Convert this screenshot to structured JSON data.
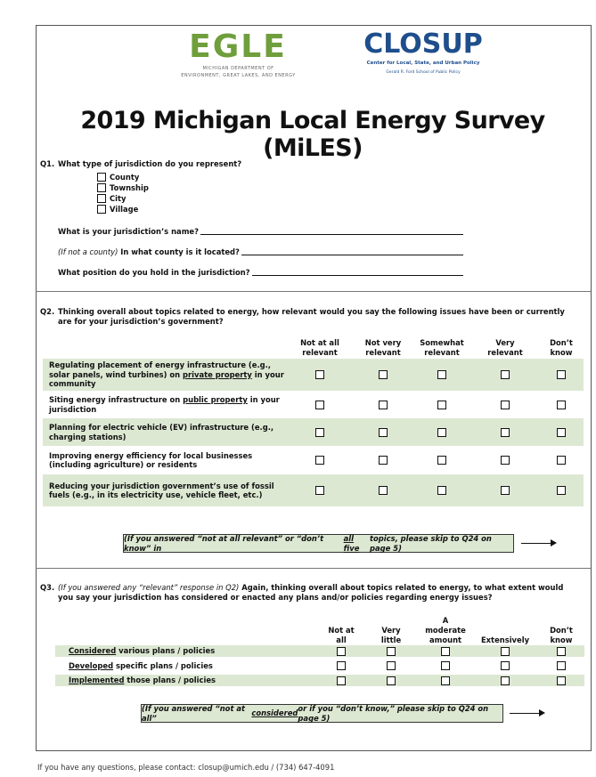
{
  "header": {
    "egle": {
      "logo": "EGLE",
      "line1": "MICHIGAN DEPARTMENT OF",
      "line2": "ENVIRONMENT, GREAT LAKES, AND ENERGY"
    },
    "closup": {
      "logo": "CLOSUP",
      "line1": "Center for Local, State, and Urban Policy",
      "line2": "Gerald R. Ford School of Public Policy"
    }
  },
  "title": "2019 Michigan Local Energy Survey (MiLES)",
  "q1": {
    "number": "Q1.",
    "text": "What type of jurisdiction do you represent?",
    "options": [
      "County",
      "Township",
      "City",
      "Village"
    ],
    "fields": [
      {
        "prefix": "",
        "label": "What is your jurisdiction’s name?"
      },
      {
        "prefix": "(If not a county)",
        "label": " In what county is it located?"
      },
      {
        "prefix": "",
        "label": "What position do you hold in the jurisdiction?"
      }
    ]
  },
  "q2": {
    "number": "Q2.",
    "text": "Thinking overall about topics related to energy, how relevant would you say the following issues have been or currently are for your jurisdiction’s government?",
    "columns": [
      [
        "Not at all",
        "relevant"
      ],
      [
        "Not very",
        "relevant"
      ],
      [
        "Somewhat",
        "relevant"
      ],
      [
        "Very",
        "relevant"
      ],
      [
        "Don’t",
        "know"
      ]
    ],
    "rows": [
      [
        "Regulating placement of energy infrastructure (e.g., solar panels, wind turbines) on ",
        "private property",
        " in your community"
      ],
      [
        "Siting energy infrastructure on ",
        "public property",
        " in your jurisdiction"
      ],
      [
        "Planning for electric vehicle (EV) infrastructure (e.g., charging stations)"
      ],
      [
        "Improving energy efficiency for local businesses (including agriculture) or residents"
      ],
      [
        "Reducing your jurisdiction government’s use of fossil fuels (e.g., in its electricity use, vehicle fleet, etc.)"
      ]
    ],
    "note": [
      "(If you answered “not at all relevant” or “don’t know” in ",
      "all five",
      " topics, please skip to Q24 on page 5)"
    ]
  },
  "q3": {
    "number": "Q3.",
    "prefix": "(If you answered any “relevant” response in Q2)",
    "text": " Again, thinking overall about topics related to energy, to what extent would you say your jurisdiction has considered or enacted any plans and/or policies regarding energy issues?",
    "columns": [
      [
        "Not at",
        "all"
      ],
      [
        "Very",
        "little"
      ],
      [
        "A",
        "moderate",
        "amount"
      ],
      [
        "Extensively"
      ],
      [
        "Don’t",
        "know"
      ]
    ],
    "rows": [
      [
        "Considered",
        " various plans / policies"
      ],
      [
        "Developed",
        " specific plans / policies"
      ],
      [
        "Implemented",
        " those plans / policies"
      ]
    ],
    "note": [
      "(If you answered “not at all” ",
      "considered",
      " or if you “don’t know,” please skip to Q24 on page 5)"
    ]
  },
  "footer": "If you have any questions, please contact: closup@umich.edu / (734) 647-4091"
}
